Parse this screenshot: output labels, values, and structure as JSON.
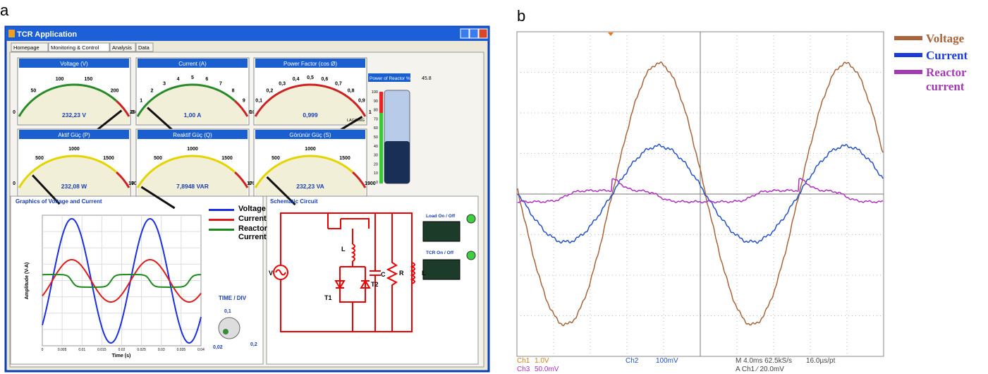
{
  "panel_labels": [
    "a",
    "b"
  ],
  "window": {
    "title": "TCR Application",
    "tabs": [
      "Homepage",
      "Monitoring & Control",
      "Analysis",
      "Data"
    ],
    "gauges": [
      {
        "title": "Voltage (V)",
        "ticks": [
          "0",
          "50",
          "100",
          "150",
          "200",
          "250"
        ],
        "reading": "232,23 V"
      },
      {
        "title": "Current (A)",
        "ticks": [
          "0",
          "1",
          "2",
          "3",
          "4",
          "5",
          "6",
          "7",
          "8",
          "9",
          "10"
        ],
        "reading": "1,00   A"
      },
      {
        "title": "Power Factor (cos Ø)",
        "ticks": [
          "0",
          "0,1",
          "0,2",
          "0,3",
          "0,4",
          "0,5",
          "0,6",
          "0,7",
          "0,8",
          "0,9",
          "1"
        ],
        "reading": "0,999",
        "note": "LAGGING"
      },
      {
        "title": "Aktif Güç (P)",
        "ticks": [
          "0",
          "500",
          "1000",
          "1500",
          "1700"
        ],
        "reading": "232,08 W"
      },
      {
        "title": "Reaktif Güç (Q)",
        "ticks": [
          "0",
          "500",
          "1000",
          "1500",
          "1700"
        ],
        "reading": "7,8948 VAR"
      },
      {
        "title": "Görünür Güç (S)",
        "ticks": [
          "0",
          "500",
          "1000",
          "1500",
          "1900"
        ],
        "reading": "232,23  VA"
      }
    ],
    "reactor": {
      "title": "Power of Reactor %",
      "value": "45.8",
      "ticks": [
        "100",
        "90",
        "80",
        "70",
        "60",
        "50",
        "40",
        "30",
        "20",
        "10",
        "0"
      ]
    },
    "graph": {
      "title": "Graphics of Voltage and Current",
      "y_label": "Amplitude (V-A)",
      "x_label": "Time (s)",
      "x_ticks": [
        "0",
        "0.005",
        "0.01",
        "0.015",
        "0.02",
        "0.025",
        "0.03",
        "0.035",
        "0.04"
      ],
      "legend": [
        "Voltage",
        "Current",
        "Reactor Current"
      ]
    },
    "time_div": {
      "title": "TIME / DIV",
      "options": [
        "0,1",
        "0,02",
        "0,2"
      ]
    },
    "schematic": {
      "title": "Schematic Circuit",
      "labels": [
        "V",
        "L",
        "T1",
        "T2",
        "C",
        "R",
        "L"
      ]
    },
    "switches": [
      "Load On / Off",
      "TCR On / Off"
    ]
  },
  "scope": {
    "legend": [
      "Voltage",
      "Current",
      "Reactor current"
    ],
    "footer": [
      "Ch1",
      "1.0V",
      "Ch2",
      "100mV",
      "M 4.0ms 62.5kS/s",
      "16.0µs/pt",
      "Ch3",
      "50.0mV",
      "A  Ch1  ⁄  20.0mV"
    ]
  }
}
